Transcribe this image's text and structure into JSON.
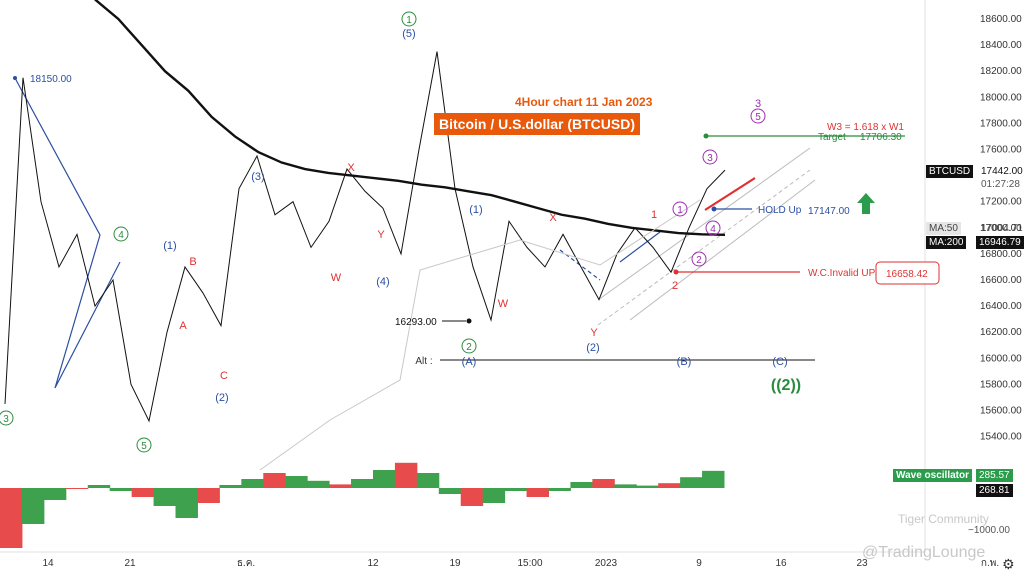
{
  "header": {
    "subtitle": "4Hour chart 11 Jan 2023",
    "title": "Bitcoin / U.S.dollar (BTCUSD)"
  },
  "price_axis": {
    "ticks": [
      "18600.00",
      "18400.00",
      "18200.00",
      "18000.00",
      "17800.00",
      "17600.00",
      "17400.00",
      "17200.00",
      "17000.00",
      "16800.00",
      "16600.00",
      "16400.00",
      "16200.00",
      "16000.00",
      "15800.00",
      "15600.00",
      "15400.00"
    ],
    "symbol": "BTCUSD",
    "last_price": "17442.00",
    "countdown": "01:27:28",
    "ma50_label": "MA:50",
    "ma50_value": "17004.71",
    "ma200_label": "MA:200",
    "ma200_value": "16946.79"
  },
  "time_axis": {
    "ticks": [
      "14",
      "21",
      "ธ.ค.",
      "12",
      "19",
      "15:00",
      "2023",
      "9",
      "16",
      "23",
      "ก.พ."
    ]
  },
  "annotations": {
    "high_18150": "18150.00",
    "low_16293": "16293.00",
    "target_label": "Target",
    "target_value": "17706.30",
    "w3_formula": "W3 = 1.618 x W1",
    "hold_label": "HOLD Up",
    "hold_value": "17147.00",
    "invalid_label": "W.C.Invalid UP",
    "invalid_value": "16658.42",
    "alt_label": "Alt :",
    "alt_A": "(A)",
    "alt_B": "(B)",
    "alt_C": "(C)",
    "big_wave": "((2))"
  },
  "waves": {
    "w1_circle": "1",
    "w5_paren": "(5)",
    "w2_circle": "2",
    "w3_paren": "(3)",
    "w4_circle": "4",
    "w3_circle_left": "3",
    "w5_circle_bottom": "5",
    "p1": "(1)",
    "p2": "(2)",
    "p4": "(4)",
    "p1b": "(1)",
    "p2b": "(2)",
    "A": "A",
    "B": "B",
    "C": "C",
    "W1": "W",
    "X1": "X",
    "Y1": "Y",
    "W2": "W",
    "X2": "X",
    "Y2": "Y",
    "m1": "1",
    "m2": "2",
    "m3": "3",
    "c1": "1",
    "c2": "2",
    "c3": "3",
    "c4": "4",
    "c5": "5"
  },
  "oscillator": {
    "label": "Wave oscillator",
    "value1": "285.57",
    "value2": "268.81",
    "tick": "−1000.00"
  },
  "watermarks": {
    "community": "Tiger Community",
    "brand": "@TradingLounge"
  },
  "chart_data": {
    "type": "line",
    "ylim": [
      15400,
      18700
    ],
    "series": [
      {
        "name": "",
        "values": [
          15650,
          18150,
          17200,
          16700,
          16950,
          16400,
          16600,
          15800,
          15520,
          16200,
          16700,
          16500,
          16250,
          17300,
          17550,
          17100,
          17200,
          16850,
          17050,
          17450,
          17280,
          17150,
          16800,
          17600,
          18350,
          17300,
          16700,
          16293,
          17050,
          16850,
          16700,
          16950,
          16700,
          16450,
          16800,
          17000,
          16850,
          16660,
          17000,
          17300,
          17442
        ]
      }
    ],
    "ma200_values": [
      18750,
      18600,
      18400,
      18200,
      18050,
      17850,
      17700,
      17580,
      17500,
      17450,
      17420,
      17400,
      17380,
      17360,
      17330,
      17310,
      17280,
      17250,
      17200,
      17150,
      17100,
      17070,
      17030,
      17000,
      16980,
      16960,
      16950,
      16946
    ],
    "oscillator_values": [
      -1000,
      -600,
      -200,
      0,
      50,
      -50,
      -150,
      -300,
      -500,
      -250,
      50,
      150,
      250,
      200,
      120,
      60,
      150,
      300,
      420,
      250,
      -100,
      -300,
      -250,
      -50,
      -150,
      -50,
      100,
      150,
      60,
      40,
      80,
      180,
      286
    ]
  }
}
